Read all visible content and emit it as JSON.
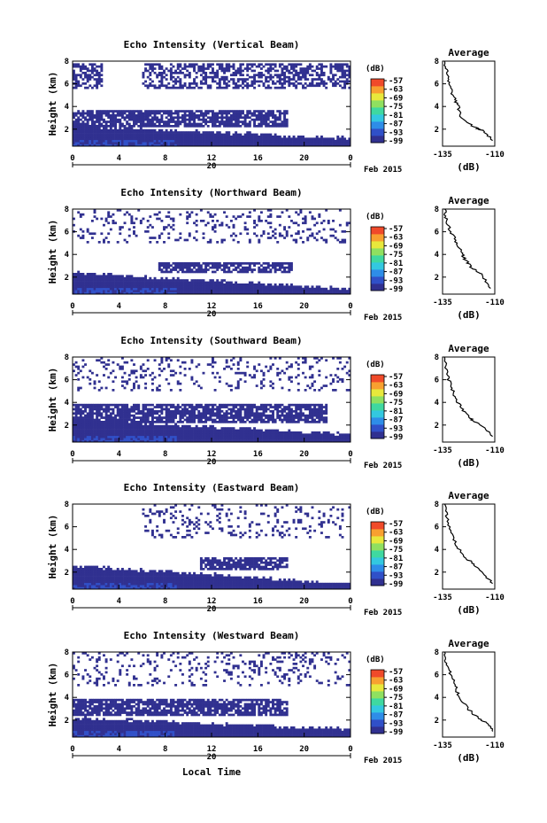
{
  "figure": {
    "date_label": "Feb 2015",
    "day_label": "20",
    "xlabel": "Local Time",
    "ylabel": "Height (km)",
    "colorbar_unit": "(dB)",
    "colorbar_ticks": [
      "-57",
      "-63",
      "-69",
      "-75",
      "-81",
      "-87",
      "-93",
      "-99"
    ],
    "profile_title": "Average",
    "profile_xlabel": "(dB)",
    "profile_xticks": [
      "-135",
      "-110"
    ],
    "x_ticks": [
      "0",
      "4",
      "8",
      "12",
      "16",
      "20",
      "0"
    ],
    "y_ticks": [
      "8",
      "6",
      "4",
      "2"
    ]
  },
  "chart_data": [
    {
      "type": "heatmap",
      "title": "Echo Intensity (Vertical Beam)",
      "x_range_hours": [
        0,
        24
      ],
      "y_range_km": [
        0.5,
        8
      ],
      "color_range_db": [
        -99,
        -57
      ],
      "colormap": [
        "#303090",
        "#3050c8",
        "#2e8de8",
        "#33c8e0",
        "#3fd8a0",
        "#8fe060",
        "#e8e83c",
        "#f8a030",
        "#f04a2a"
      ],
      "layers": [
        {
          "name": "low",
          "top_start_km": 2.3,
          "top_end_km": 1.2,
          "t_start": 0,
          "t_end": 24
        },
        {
          "name": "mid",
          "bottom_km": 2.1,
          "top_km": 3.6,
          "t_start": 0,
          "t_end": 18.5
        },
        {
          "name": "upper",
          "bottom_km": 5.5,
          "top_km": 7.8,
          "t_start": 6,
          "t_end": 24
        },
        {
          "name": "upper-early",
          "bottom_km": 5.6,
          "top_km": 7.8,
          "t_start": 0,
          "t_end": 2.5
        }
      ],
      "profile": {
        "xlim": [
          -135,
          -110
        ],
        "ylim": [
          0.5,
          8
        ],
        "points": [
          [
            -134,
            8
          ],
          [
            -133,
            7
          ],
          [
            -132,
            6
          ],
          [
            -130,
            5
          ],
          [
            -128,
            4.2
          ],
          [
            -126,
            3
          ],
          [
            -120,
            2.2
          ],
          [
            -115,
            1.8
          ],
          [
            -111,
            1.0
          ]
        ]
      }
    },
    {
      "type": "heatmap",
      "title": "Echo Intensity (Northward Beam)",
      "x_range_hours": [
        0,
        24
      ],
      "y_range_km": [
        0.5,
        8
      ],
      "color_range_db": [
        -99,
        -57
      ],
      "colormap": [
        "#303090",
        "#3050c8",
        "#2e8de8",
        "#33c8e0",
        "#3fd8a0",
        "#8fe060",
        "#e8e83c",
        "#f8a030",
        "#f04a2a"
      ],
      "layers": [
        {
          "name": "low",
          "top_start_km": 2.4,
          "top_end_km": 1.0,
          "t_start": 0,
          "t_end": 24
        },
        {
          "name": "mid",
          "bottom_km": 2.4,
          "top_km": 3.4,
          "t_start": 7.5,
          "t_end": 19
        },
        {
          "name": "sparse",
          "bottom_km": 5.0,
          "top_km": 8.0,
          "t_start": 0,
          "t_end": 24
        }
      ],
      "profile": {
        "xlim": [
          -135,
          -110
        ],
        "ylim": [
          0.5,
          8
        ],
        "points": [
          [
            -134,
            8
          ],
          [
            -133,
            7
          ],
          [
            -131,
            6
          ],
          [
            -128,
            5
          ],
          [
            -126,
            4.2
          ],
          [
            -124,
            3.5
          ],
          [
            -121,
            2.8
          ],
          [
            -116,
            2.2
          ],
          [
            -112,
            1.0
          ]
        ]
      }
    },
    {
      "type": "heatmap",
      "title": "Echo Intensity (Southward Beam)",
      "x_range_hours": [
        0,
        24
      ],
      "y_range_km": [
        0.5,
        8
      ],
      "color_range_db": [
        -99,
        -57
      ],
      "colormap": [
        "#303090",
        "#3050c8",
        "#2e8de8",
        "#33c8e0",
        "#3fd8a0",
        "#8fe060",
        "#e8e83c",
        "#f8a030",
        "#f04a2a"
      ],
      "layers": [
        {
          "name": "low",
          "top_start_km": 2.5,
          "top_end_km": 1.2,
          "t_start": 0,
          "t_end": 24
        },
        {
          "name": "mid",
          "bottom_km": 2.2,
          "top_km": 3.8,
          "t_start": 0,
          "t_end": 22
        },
        {
          "name": "sparse",
          "bottom_km": 5.0,
          "top_km": 8.0,
          "t_start": 0,
          "t_end": 24
        }
      ],
      "profile": {
        "xlim": [
          -135,
          -110
        ],
        "ylim": [
          0.5,
          8
        ],
        "points": [
          [
            -134,
            8
          ],
          [
            -133,
            6.5
          ],
          [
            -131,
            5.5
          ],
          [
            -129,
            4.5
          ],
          [
            -126,
            3.5
          ],
          [
            -122,
            2.6
          ],
          [
            -117,
            2.0
          ],
          [
            -111,
            1.0
          ]
        ]
      }
    },
    {
      "type": "heatmap",
      "title": "Echo Intensity (Eastward Beam)",
      "x_range_hours": [
        0,
        24
      ],
      "y_range_km": [
        0.5,
        8
      ],
      "color_range_db": [
        -99,
        -57
      ],
      "colormap": [
        "#303090",
        "#3050c8",
        "#2e8de8",
        "#33c8e0",
        "#3fd8a0",
        "#8fe060",
        "#e8e83c",
        "#f8a030",
        "#f04a2a"
      ],
      "layers": [
        {
          "name": "low",
          "top_start_km": 2.6,
          "top_end_km": 1.0,
          "t_start": 0,
          "t_end": 24
        },
        {
          "name": "mid",
          "bottom_km": 2.2,
          "top_km": 3.4,
          "t_start": 11,
          "t_end": 18.5
        },
        {
          "name": "sparse",
          "bottom_km": 5.0,
          "top_km": 8.0,
          "t_start": 6,
          "t_end": 24
        }
      ],
      "profile": {
        "xlim": [
          -135,
          -110
        ],
        "ylim": [
          0.5,
          8
        ],
        "points": [
          [
            -134,
            8
          ],
          [
            -133,
            6.8
          ],
          [
            -131,
            5.5
          ],
          [
            -128,
            4.2
          ],
          [
            -125,
            3.5
          ],
          [
            -121,
            2.8
          ],
          [
            -116,
            2.0
          ],
          [
            -111,
            1.0
          ]
        ]
      }
    },
    {
      "type": "heatmap",
      "title": "Echo Intensity (Westward Beam)",
      "x_range_hours": [
        0,
        24
      ],
      "y_range_km": [
        0.5,
        8
      ],
      "color_range_db": [
        -99,
        -57
      ],
      "colormap": [
        "#303090",
        "#3050c8",
        "#2e8de8",
        "#33c8e0",
        "#3fd8a0",
        "#8fe060",
        "#e8e83c",
        "#f8a030",
        "#f04a2a"
      ],
      "layers": [
        {
          "name": "low",
          "top_start_km": 2.2,
          "top_end_km": 1.2,
          "t_start": 0,
          "t_end": 24
        },
        {
          "name": "mid",
          "bottom_km": 2.4,
          "top_km": 3.8,
          "t_start": 0,
          "t_end": 18.5
        },
        {
          "name": "sparse",
          "bottom_km": 5.0,
          "top_km": 8.0,
          "t_start": 0,
          "t_end": 24
        }
      ],
      "profile": {
        "xlim": [
          -135,
          -110
        ],
        "ylim": [
          0.5,
          8
        ],
        "points": [
          [
            -134,
            8
          ],
          [
            -133,
            7
          ],
          [
            -131,
            6
          ],
          [
            -129,
            5
          ],
          [
            -127,
            4
          ],
          [
            -123,
            3
          ],
          [
            -118,
            2.2
          ],
          [
            -113,
            1.6
          ],
          [
            -111,
            1.0
          ]
        ]
      }
    }
  ]
}
